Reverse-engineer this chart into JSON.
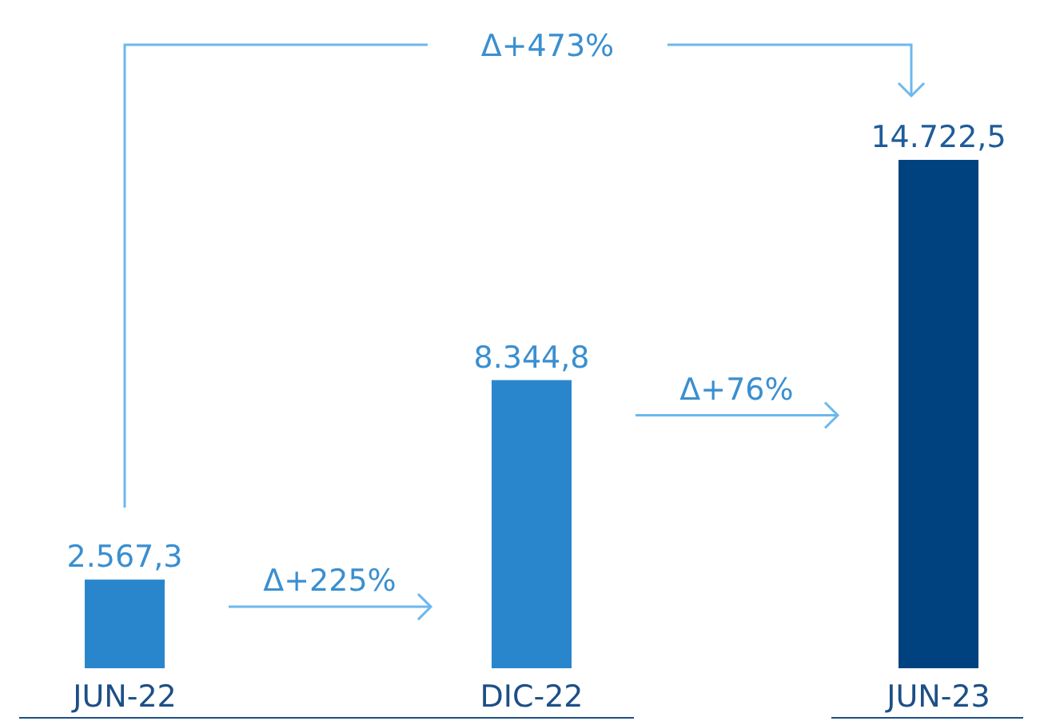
{
  "chart_data": {
    "type": "bar",
    "categories": [
      "JUN-22",
      "DIC-22",
      "JUN-23"
    ],
    "values": [
      2567.3,
      8344.8,
      14722.5
    ],
    "colors": [
      "#2a86cc",
      "#2a86cc",
      "#00427f"
    ],
    "value_labels": [
      "2.567,3",
      "8.344,8",
      "14.722,5"
    ],
    "annotations": [
      "Δ+473%",
      "Δ+225%",
      "Δ+76%"
    ]
  }
}
